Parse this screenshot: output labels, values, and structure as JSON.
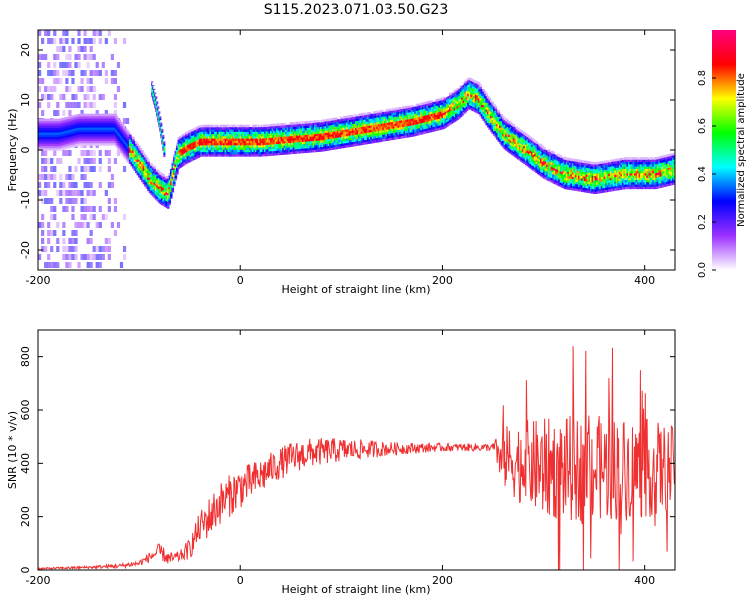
{
  "title": "S115.2023.071.03.50.G23",
  "chart_data": [
    {
      "type": "heatmap",
      "xlabel": "Height of straight line (km)",
      "ylabel": "Frequency (Hz)",
      "xlim": [
        -200,
        430
      ],
      "ylim": [
        -24,
        24
      ],
      "xticks": [
        "-200",
        "0",
        "200",
        "400"
      ],
      "yticks": [
        "20",
        "10",
        "0",
        "-10",
        "-20"
      ],
      "colorbar": {
        "label": "Normalized spectral amplitude",
        "range": [
          0,
          1
        ],
        "ticks": [
          "0.0",
          "0.2",
          "0.4",
          "0.6",
          "0.8"
        ],
        "colormap": [
          "#ffffff",
          "#9b30ff",
          "#0000ff",
          "#00ffff",
          "#00ff00",
          "#ffff00",
          "#ff0000",
          "#ff0080"
        ]
      },
      "ridge": {
        "x": [
          -200,
          -180,
          -160,
          -140,
          -125,
          -110,
          -100,
          -90,
          -80,
          -72,
          -66,
          -62,
          -55,
          -40,
          -20,
          0,
          20,
          50,
          80,
          110,
          140,
          170,
          200,
          215,
          225,
          235,
          245,
          260,
          280,
          300,
          320,
          350,
          380,
          410,
          430
        ],
        "y": [
          3,
          3,
          4,
          4,
          4,
          0,
          -3,
          -6,
          -8,
          -9,
          -4,
          -1,
          0,
          1.5,
          1.5,
          1.5,
          1.5,
          2,
          2.5,
          3.5,
          4.5,
          5.5,
          7,
          9,
          11,
          10,
          7,
          3,
          0,
          -3,
          -5,
          -6,
          -5,
          -5,
          -4
        ]
      },
      "branch": {
        "x": [
          -88,
          -84,
          -80,
          -76
        ],
        "y": [
          12,
          9,
          5,
          0
        ]
      }
    },
    {
      "type": "line",
      "xlabel": "Height of straight line (km)",
      "ylabel": "SNR (10 * v/v)",
      "xlim": [
        -200,
        430
      ],
      "ylim": [
        0,
        900
      ],
      "xticks": [
        "-200",
        "0",
        "200",
        "400"
      ],
      "yticks": [
        "0",
        "200",
        "400",
        "600",
        "800"
      ],
      "color": "#f03030",
      "envelope": {
        "x": [
          -200,
          -150,
          -120,
          -100,
          -80,
          -70,
          -60,
          -50,
          -40,
          -30,
          -20,
          -10,
          0,
          10,
          20,
          30,
          50,
          70,
          100,
          150,
          200,
          250,
          260,
          280,
          300,
          330,
          360,
          400,
          430
        ],
        "base": [
          5,
          10,
          15,
          25,
          70,
          40,
          50,
          80,
          160,
          200,
          250,
          280,
          310,
          330,
          350,
          380,
          420,
          440,
          450,
          455,
          460,
          460,
          420,
          400,
          380,
          380,
          380,
          380,
          380
        ],
        "amp": [
          3,
          5,
          8,
          10,
          30,
          25,
          20,
          40,
          60,
          80,
          80,
          80,
          80,
          70,
          70,
          60,
          60,
          55,
          45,
          25,
          15,
          15,
          120,
          160,
          190,
          200,
          200,
          190,
          160
        ]
      }
    }
  ]
}
